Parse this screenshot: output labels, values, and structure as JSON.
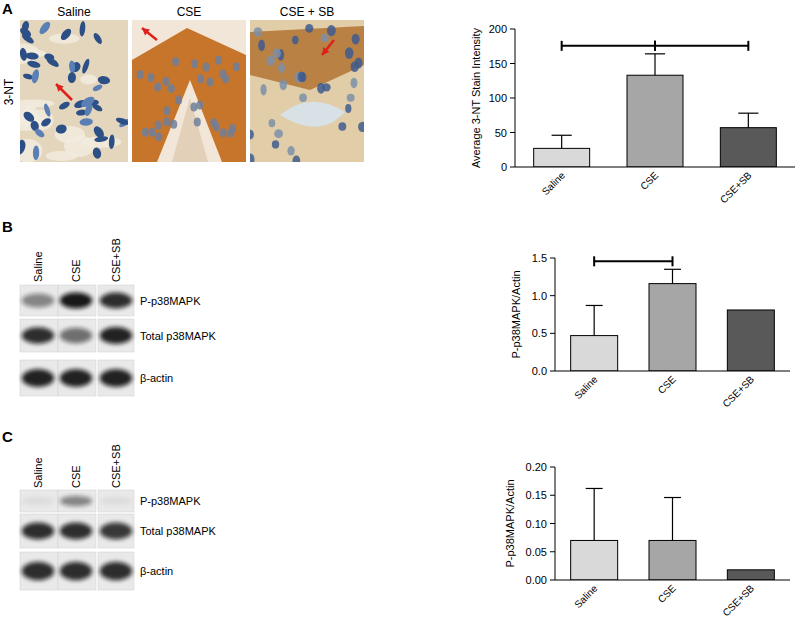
{
  "chart_data": [
    {
      "type": "bar",
      "categories": [
        "Saline",
        "CSE",
        "CSE+SB"
      ],
      "values": [
        27,
        133,
        57
      ],
      "errors": [
        19,
        31,
        21
      ],
      "colors": [
        "#d9d9d9",
        "#a6a6a6",
        "#595959"
      ],
      "y_label": "Average 3-NT Stain Intensity",
      "ylim": [
        0,
        200
      ],
      "yticks": [
        0,
        50,
        100,
        150,
        200
      ],
      "significance_pairs": [
        [
          0,
          1
        ],
        [
          1,
          2
        ]
      ]
    },
    {
      "type": "bar",
      "categories": [
        "Saline",
        "CSE",
        "CSE+SB"
      ],
      "values": [
        0.47,
        1.16,
        0.81
      ],
      "errors": [
        0.4,
        0.19,
        null
      ],
      "colors": [
        "#d9d9d9",
        "#a6a6a6",
        "#595959"
      ],
      "y_label": "P-p38MAPK/Actin",
      "ylim": [
        0,
        1.5
      ],
      "yticks": [
        {
          "value": 0,
          "label": "0.0"
        },
        0.5,
        {
          "value": 1,
          "label": "1.0"
        },
        1.5
      ],
      "significance_pairs": [
        [
          0,
          1
        ]
      ]
    },
    {
      "type": "bar",
      "categories": [
        "Saline",
        "CSE",
        "CSE+SB"
      ],
      "values": [
        0.07,
        0.07,
        0.018
      ],
      "errors": [
        0.092,
        0.076,
        null
      ],
      "colors": [
        "#d9d9d9",
        "#a6a6a6",
        "#595959"
      ],
      "y_label": "P-p38MAPK/Actin",
      "ylim": [
        0,
        0.2
      ],
      "yticks": [
        {
          "value": 0,
          "label": "0.00"
        },
        0.05,
        {
          "value": 0.1,
          "label": "0.10"
        },
        0.15,
        {
          "value": 0.2,
          "label": "0.20"
        }
      ],
      "significance_pairs": []
    }
  ],
  "figure": {
    "panels": [
      {
        "letter": "A",
        "stain": "3-NT",
        "image_labels": [
          "Saline",
          "CSE",
          "CSE + SB"
        ]
      },
      {
        "letter": "B",
        "lanes": [
          "Saline",
          "CSE",
          "CSE+SB"
        ],
        "bands": [
          "P-p38MAPK",
          "Total p38MAPK",
          "β-actin"
        ]
      },
      {
        "letter": "C",
        "lanes": [
          "Saline",
          "CSE",
          "CSE+SB"
        ],
        "bands": [
          "P-p38MAPK",
          "Total p38MAPK",
          "β-actin"
        ]
      }
    ]
  }
}
